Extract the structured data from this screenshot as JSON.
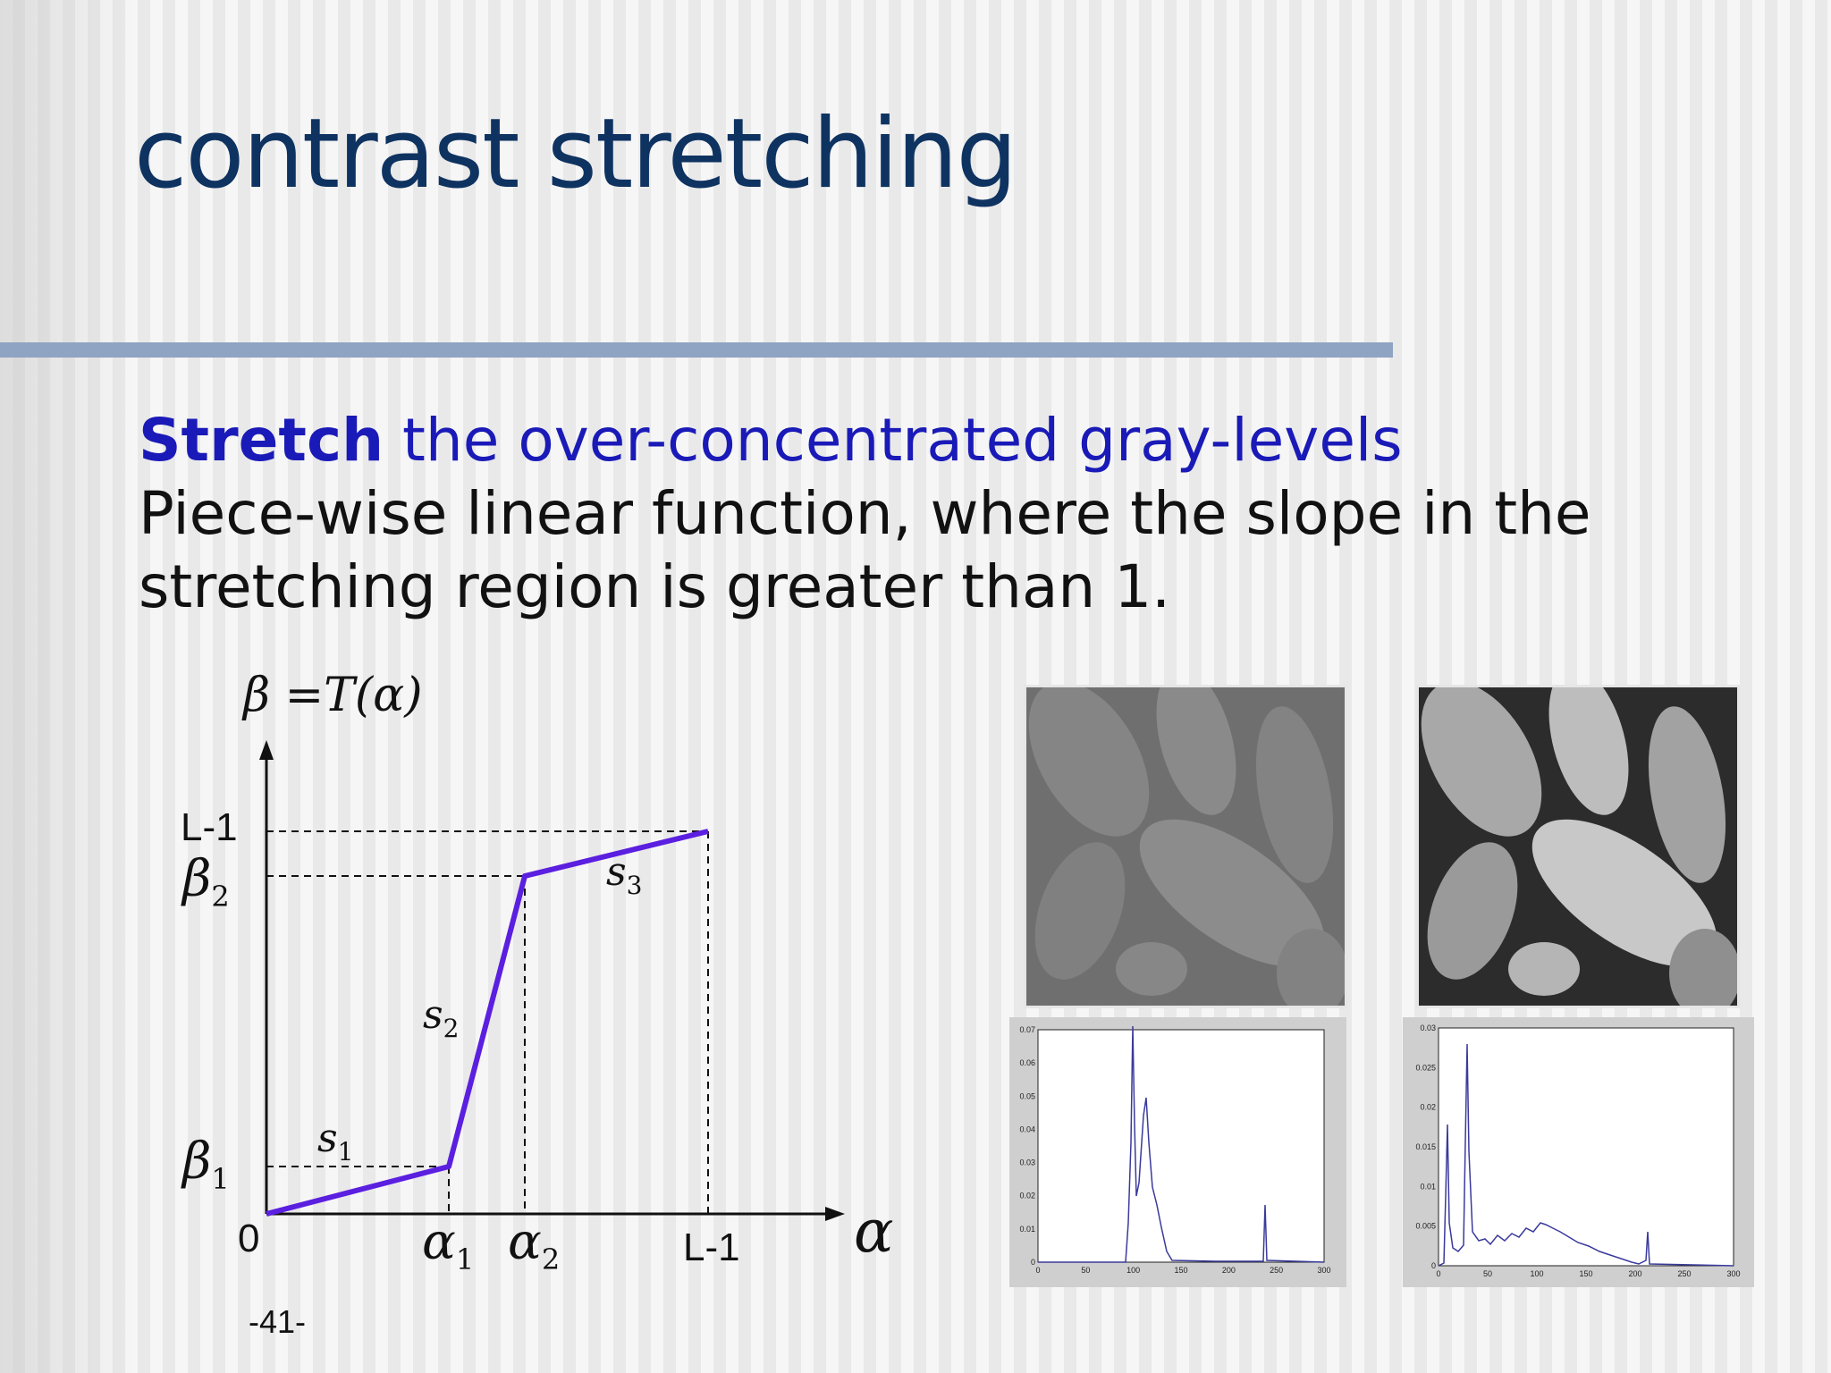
{
  "slide": {
    "title": "contrast stretching",
    "line1_strong": "Stretch",
    "line1_rest": " the over-concentrated gray-levels",
    "line2": "Piece-wise linear function, where the slope in the",
    "line3": "stretching region is greater than 1.",
    "page_number": "-41-"
  },
  "graph": {
    "function_label": "β =T(α)",
    "y_tick_top": "L-1",
    "y_tick_beta2": "β",
    "y_tick_beta2_sub": "2",
    "y_tick_beta1": "β",
    "y_tick_beta1_sub": "1",
    "origin": "0",
    "x_tick_alpha1": "α",
    "x_tick_alpha1_sub": "1",
    "x_tick_alpha2": "α",
    "x_tick_alpha2_sub": "2",
    "x_tick_right": "L-1",
    "x_axis_symbol": "α",
    "seg1": "s",
    "seg1_sub": "1",
    "seg2": "s",
    "seg2_sub": "2",
    "seg3": "s",
    "seg3_sub": "3",
    "line_color": "#5b1fe0"
  },
  "histogram_left": {
    "y_ticks": [
      "0.07",
      "0.06",
      "0.05",
      "0.04",
      "0.03",
      "0.02",
      "0.01",
      "0"
    ],
    "x_ticks": [
      "0",
      "50",
      "100",
      "150",
      "200",
      "250",
      "300"
    ],
    "line_color": "#3a3a9c"
  },
  "histogram_right": {
    "y_ticks": [
      "0.03",
      "0.025",
      "0.02",
      "0.015",
      "0.01",
      "0.005",
      "0"
    ],
    "x_ticks": [
      "0",
      "50",
      "100",
      "150",
      "200",
      "250",
      "300"
    ],
    "line_color": "#3a3a9c"
  }
}
